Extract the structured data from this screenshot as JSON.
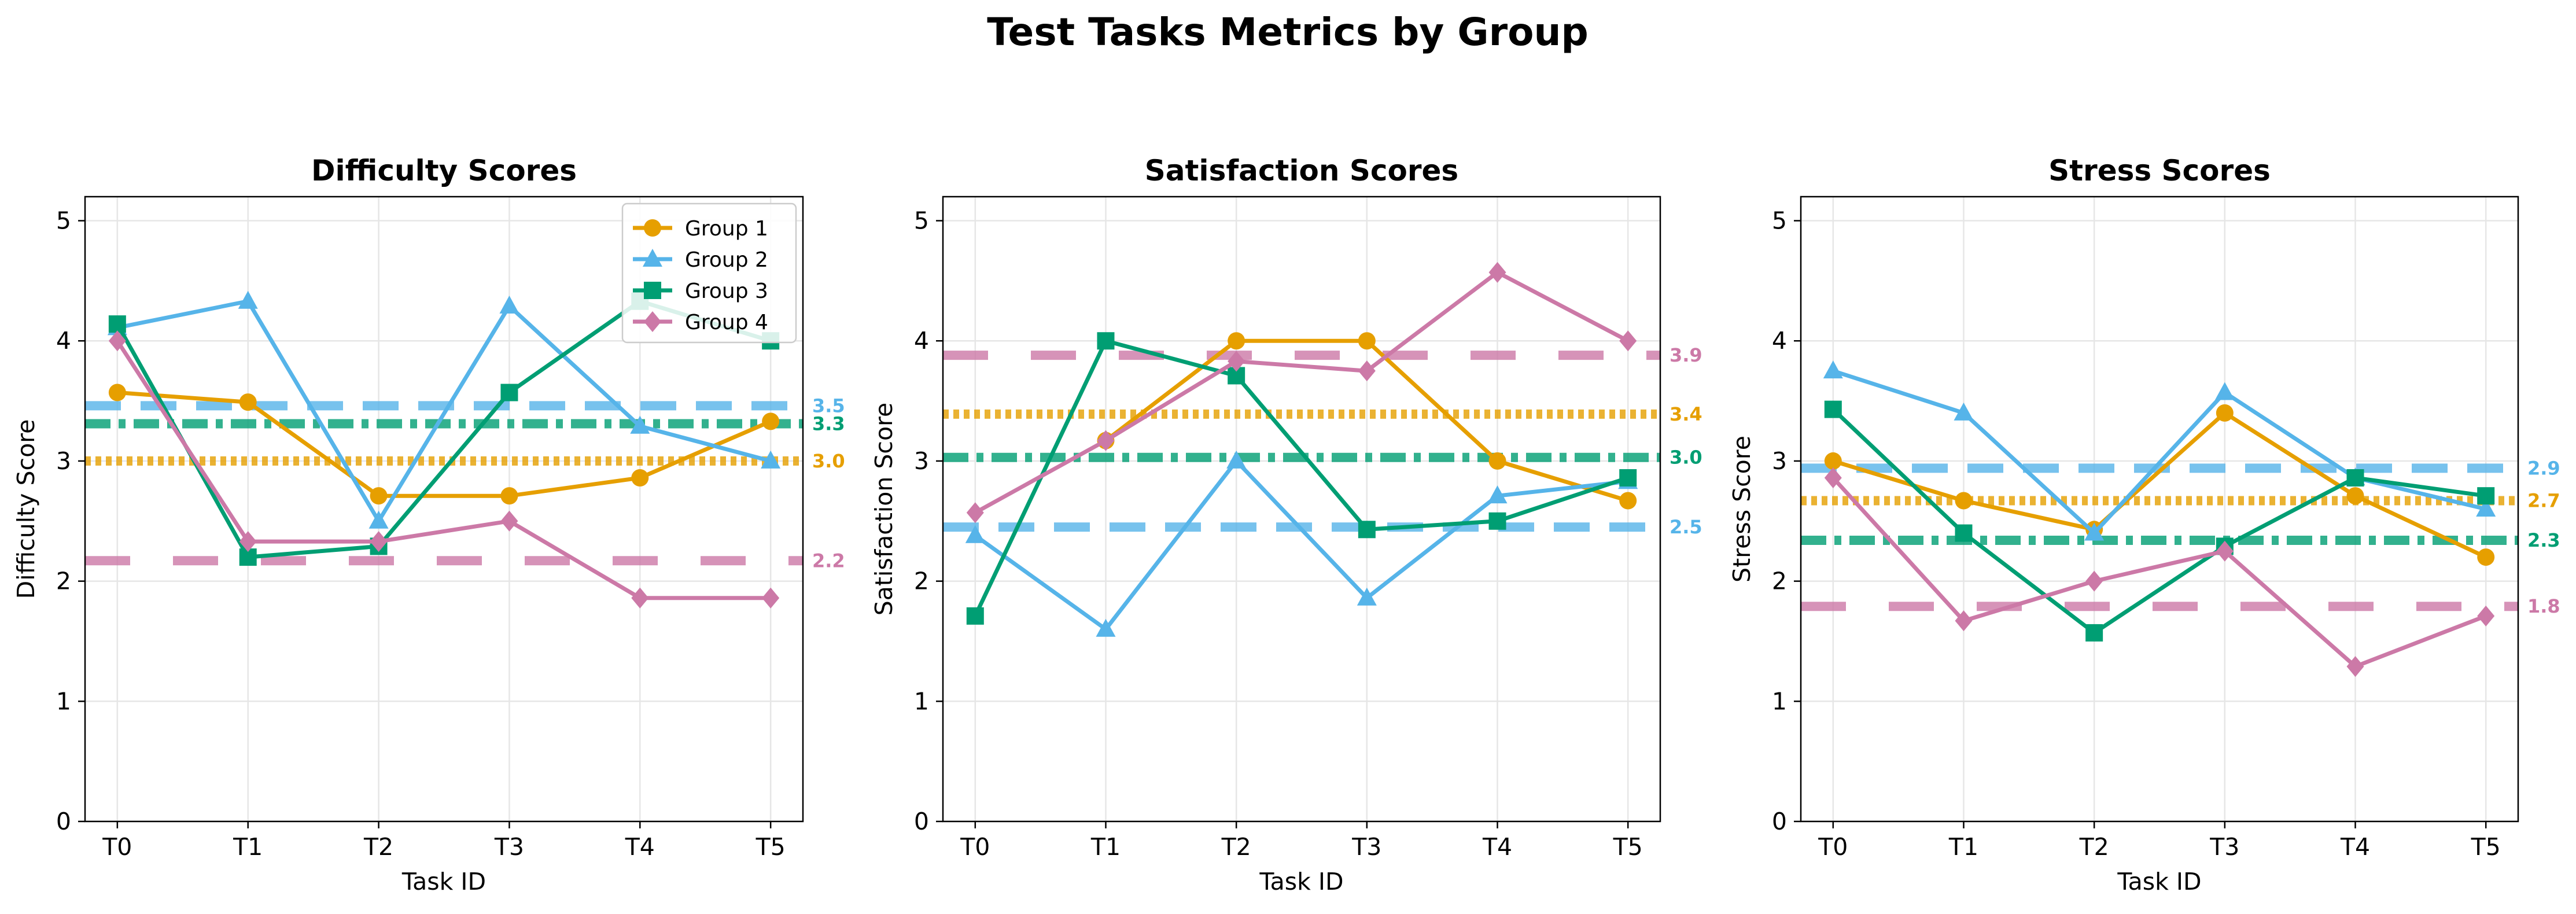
{
  "figure": {
    "title": "Test Tasks Metrics by Group"
  },
  "chart_data": [
    {
      "type": "line",
      "title": "Difficulty Scores",
      "xlabel": "Task ID",
      "ylabel": "Difficulty Score",
      "categories": [
        "T0",
        "T1",
        "T2",
        "T3",
        "T4",
        "T5"
      ],
      "ylim": [
        0,
        5.2
      ],
      "yticks": [
        0,
        1,
        2,
        3,
        4,
        5
      ],
      "grid": true,
      "legend": {
        "placement": "top-right"
      },
      "series": [
        {
          "name": "Group 1",
          "color": "#E69F00",
          "marker": "circle",
          "values": [
            3.57,
            3.49,
            2.71,
            2.71,
            2.86,
            3.33
          ],
          "mean": 3.0,
          "mean_label": "3.0",
          "mean_style": "dotted"
        },
        {
          "name": "Group 2",
          "color": "#56B4E9",
          "marker": "triangle",
          "values": [
            4.11,
            4.33,
            2.5,
            4.29,
            3.29,
            3.0
          ],
          "mean": 3.46,
          "mean_label": "3.5",
          "mean_style": "dashed"
        },
        {
          "name": "Group 3",
          "color": "#009E73",
          "marker": "square",
          "values": [
            4.14,
            2.2,
            2.29,
            3.57,
            4.33,
            4.0
          ],
          "mean": 3.31,
          "mean_label": "3.3",
          "mean_style": "dashdot"
        },
        {
          "name": "Group 4",
          "color": "#CC79A7",
          "marker": "diamond",
          "values": [
            4.0,
            2.33,
            2.33,
            2.5,
            1.86,
            1.86
          ],
          "mean": 2.17,
          "mean_label": "2.2",
          "mean_style": "longdash"
        }
      ]
    },
    {
      "type": "line",
      "title": "Satisfaction Scores",
      "xlabel": "Task ID",
      "ylabel": "Satisfaction Score",
      "categories": [
        "T0",
        "T1",
        "T2",
        "T3",
        "T4",
        "T5"
      ],
      "ylim": [
        0,
        5.2
      ],
      "yticks": [
        0,
        1,
        2,
        3,
        4,
        5
      ],
      "grid": true,
      "series": [
        {
          "name": "Group 1",
          "color": "#E69F00",
          "marker": "circle",
          "values": [
            null,
            3.17,
            4.0,
            4.0,
            3.0,
            2.67
          ],
          "mean": 3.39,
          "mean_label": "3.4",
          "mean_style": "dotted"
        },
        {
          "name": "Group 2",
          "color": "#56B4E9",
          "marker": "triangle",
          "values": [
            2.38,
            1.6,
            3.0,
            1.86,
            2.71,
            2.83
          ],
          "mean": 2.45,
          "mean_label": "2.5",
          "mean_style": "dashed"
        },
        {
          "name": "Group 3",
          "color": "#009E73",
          "marker": "square",
          "values": [
            1.71,
            4.0,
            3.71,
            2.43,
            2.5,
            2.86
          ],
          "mean": 3.03,
          "mean_label": "3.0",
          "mean_style": "dashdot"
        },
        {
          "name": "Group 4",
          "color": "#CC79A7",
          "marker": "diamond",
          "values": [
            2.57,
            3.17,
            3.83,
            3.75,
            4.57,
            4.0
          ],
          "mean": 3.88,
          "mean_label": "3.9",
          "mean_style": "longdash"
        }
      ]
    },
    {
      "type": "line",
      "title": "Stress Scores",
      "xlabel": "Task ID",
      "ylabel": "Stress Score",
      "categories": [
        "T0",
        "T1",
        "T2",
        "T3",
        "T4",
        "T5"
      ],
      "ylim": [
        0,
        5.2
      ],
      "yticks": [
        0,
        1,
        2,
        3,
        4,
        5
      ],
      "grid": true,
      "series": [
        {
          "name": "Group 1",
          "color": "#E69F00",
          "marker": "circle",
          "values": [
            3.0,
            2.67,
            2.43,
            3.4,
            2.71,
            2.2
          ],
          "mean": 2.67,
          "mean_label": "2.7",
          "mean_style": "dotted"
        },
        {
          "name": "Group 2",
          "color": "#56B4E9",
          "marker": "triangle",
          "values": [
            3.75,
            3.4,
            2.4,
            3.57,
            2.86,
            2.6
          ],
          "mean": 2.94,
          "mean_label": "2.9",
          "mean_style": "dashed"
        },
        {
          "name": "Group 3",
          "color": "#009E73",
          "marker": "square",
          "values": [
            3.43,
            2.4,
            1.57,
            2.29,
            2.86,
            2.71
          ],
          "mean": 2.34,
          "mean_label": "2.3",
          "mean_style": "dashdot"
        },
        {
          "name": "Group 4",
          "color": "#CC79A7",
          "marker": "diamond",
          "values": [
            2.86,
            1.67,
            2.0,
            2.25,
            1.29,
            1.71
          ],
          "mean": 1.79,
          "mean_label": "1.8",
          "mean_style": "longdash"
        }
      ]
    }
  ]
}
